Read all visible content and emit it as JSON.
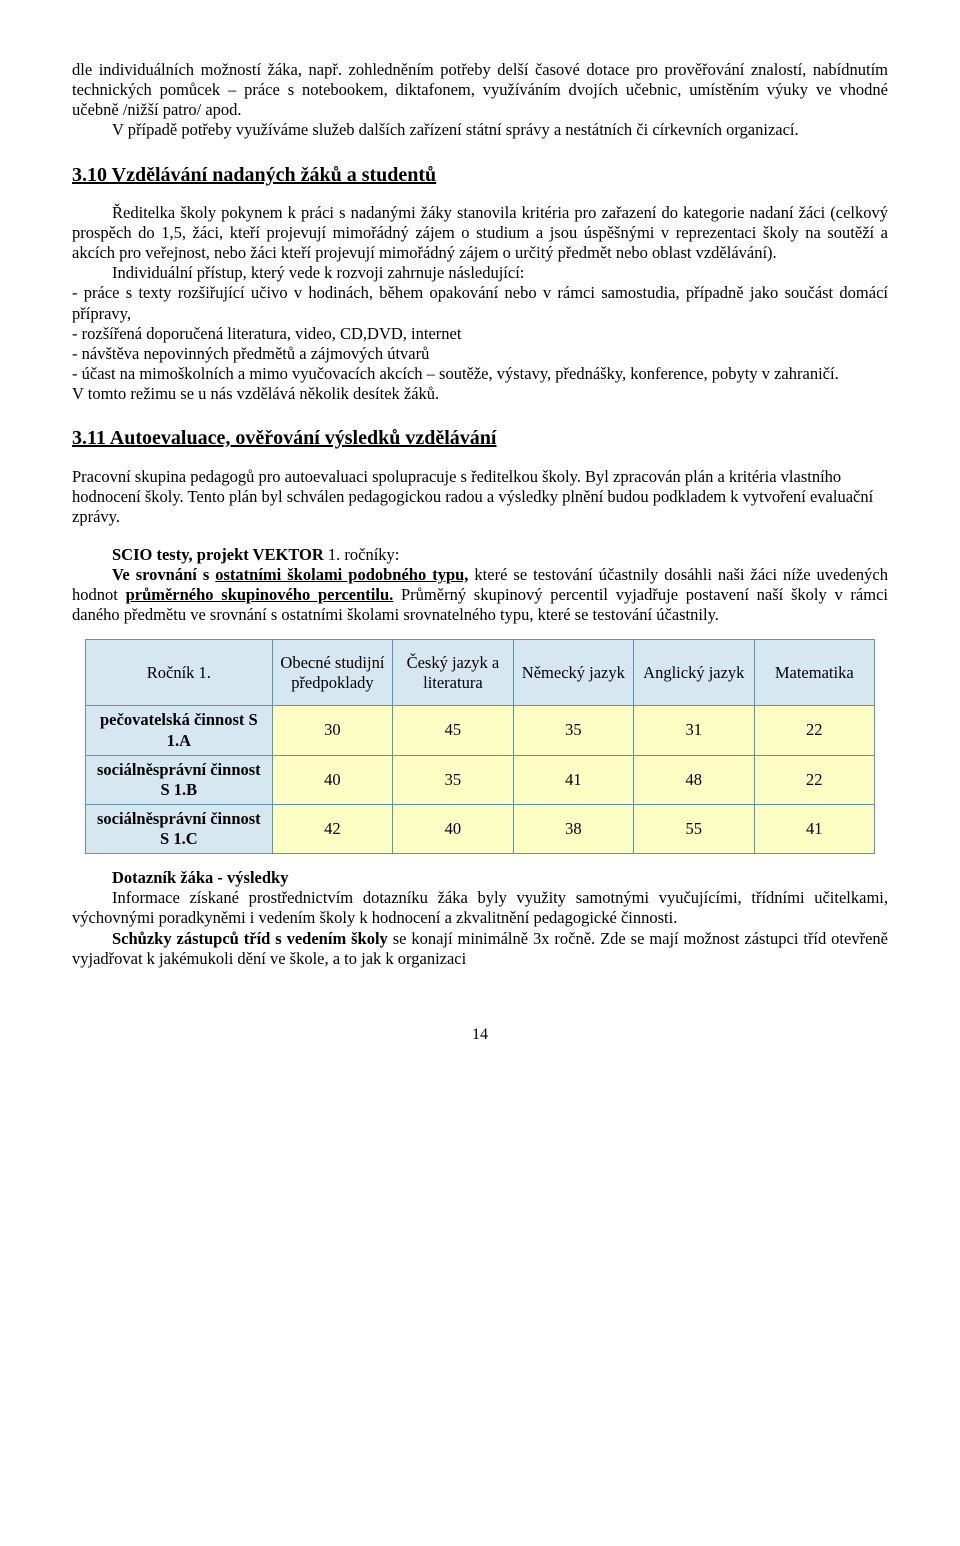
{
  "intro": {
    "p1": "dle individuálních možností žáka, např. zohledněním potřeby delší časové dotace pro prověřování znalostí, nabídnutím  technických pomůcek – práce s notebookem, diktafonem, využíváním dvojích učebnic, umístěním výuky ve vhodné učebně /nižší patro/ apod.",
    "p2": "V případě potřeby využíváme služeb dalších zařízení státní správy a nestátních či církevních organizací."
  },
  "s310": {
    "title": "3.10 Vzdělávání nadaných žáků a studentů",
    "p1": "Ředitelka školy pokynem k práci s nadanými žáky stanovila kritéria pro zařazení do kategorie nadaní žáci (celkový prospěch do 1,5, žáci, kteří projevují mimořádný zájem o studium a jsou úspěšnými v reprezentaci školy na soutěží a akcích pro veřejnost, nebo žáci kteří projevují mimořádný zájem o určitý předmět nebo oblast vzdělávání).",
    "p2": "Individuální přístup, který vede k rozvoji zahrnuje následující:",
    "b1": "- práce s texty rozšiřující učivo v hodinách, během opakování nebo v rámci samostudia, případně jako součást domácí přípravy,",
    "b2": "- rozšířená doporučená literatura, video, CD,DVD, internet",
    "b3": "- návštěva nepovinných předmětů a zájmových útvarů",
    "b4": "- účast na mimoškolních a mimo vyučovacích akcích – soutěže, výstavy, přednášky, konference, pobyty v zahraničí.",
    "p3": "V tomto režimu se u nás vzdělává několik desítek žáků."
  },
  "s311": {
    "title": "3.11 Autoevaluace, ověřování výsledků vzdělávání",
    "p1": "Pracovní skupina pedagogů pro autoevaluaci spolupracuje s ředitelkou školy. Byl zpracován plán a kritéria vlastního hodnocení školy. Tento plán byl schválen pedagogickou radou a výsledky plnění budou podkladem k vytvoření evaluační zprávy.",
    "scio_label": "SCIO testy, projekt VEKTOR",
    "scio_suffix": " 1. ročníky:",
    "p2a": "Ve srovnání s ",
    "p2b": "ostatními školami podobného typu,",
    "p2c": " které se testování účastnily dosáhli naši žáci níže uvedených hodnot ",
    "p2d": "průměrného skupinového percentilu.",
    "p2e": " Průměrný skupinový percentil vyjadřuje postavení naší školy v rámci daného předmětu ve srovnání s ostatními školami srovnatelného typu, které se testování účastnily."
  },
  "table": {
    "headers": {
      "c0": "Ročník 1.",
      "c1": "Obecné studijní předpoklady",
      "c2": "Český jazyk a literatura",
      "c3": "Německý jazyk",
      "c4": "Anglický jazyk",
      "c5": "Matematika"
    },
    "rows": [
      {
        "label": "pečovatelská činnost S 1.A",
        "v": [
          "30",
          "45",
          "35",
          "31",
          "22"
        ]
      },
      {
        "label": "sociálněsprávní činnost   S 1.B",
        "v": [
          "40",
          "35",
          "41",
          "48",
          "22"
        ]
      },
      {
        "label": "sociálněsprávní činnost   S 1.C",
        "v": [
          "42",
          "40",
          "38",
          "55",
          "41"
        ]
      }
    ]
  },
  "closing": {
    "t1": "Dotazník žáka - výsledky",
    "p1": "Informace získané prostřednictvím dotazníku žáka byly využity samotnými vyučujícími, třídními učitelkami, výchovnými poradkyněmi i vedením školy k hodnocení a zkvalitnění pedagogické činnosti.",
    "t2": "Schůzky zástupců tříd s vedením školy",
    "p2": " se konají minimálně 3x ročně. Zde se mají možnost zástupci tříd otevřeně vyjadřovat k jakémukoli dění ve škole, a to jak k organizaci"
  },
  "page": "14"
}
